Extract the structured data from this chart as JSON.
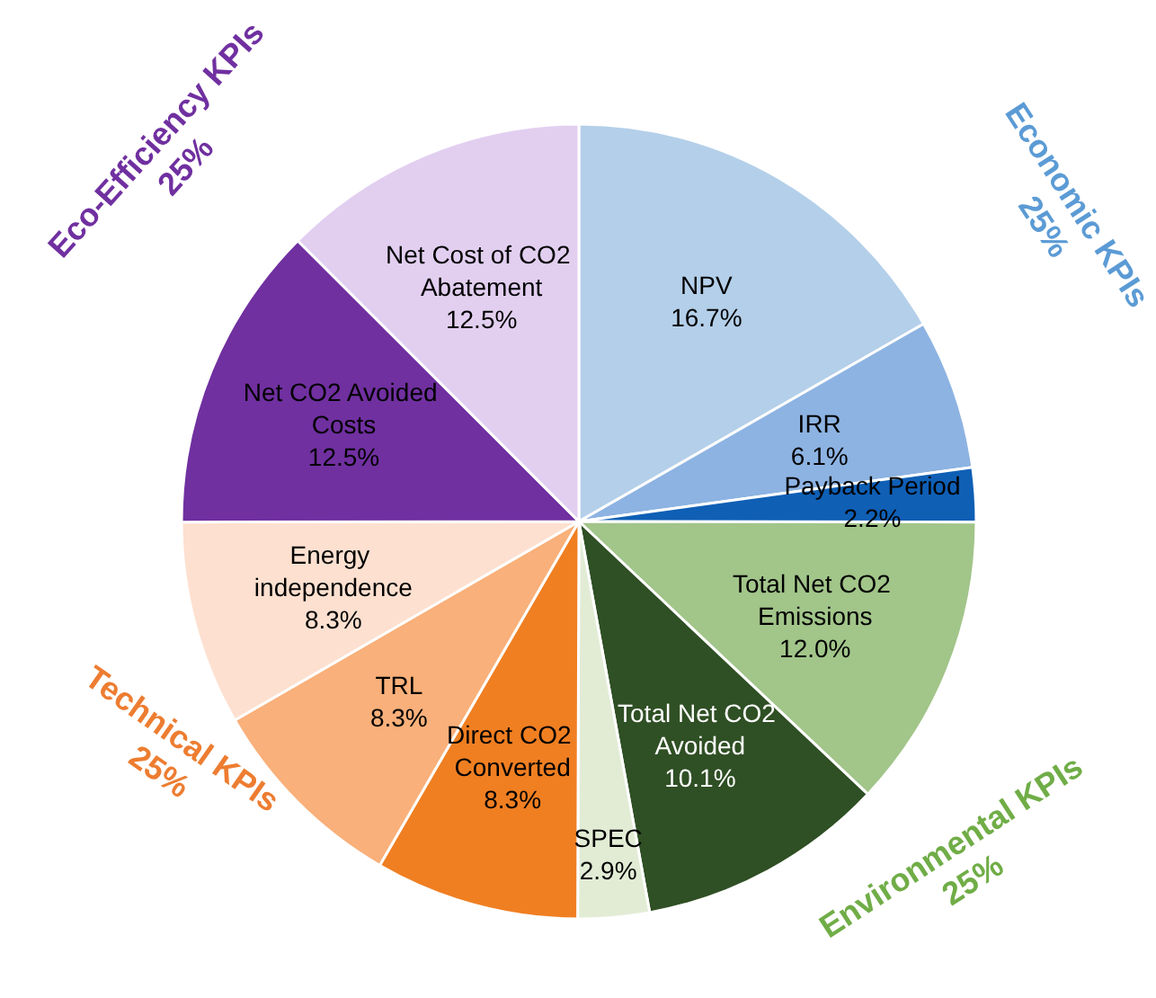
{
  "chart_data": {
    "type": "pie",
    "categories": [
      "NPV",
      "IRR",
      "Payback Period",
      "Total Net CO2 Emissions",
      "Total Net CO2 Avoided",
      "SPEC",
      "Direct CO2 Converted",
      "TRL",
      "Energy independence",
      "Net CO2 Avoided Costs",
      "Net Cost of CO2 Abatement"
    ],
    "values": [
      16.7,
      6.1,
      2.2,
      12.0,
      10.1,
      2.9,
      8.3,
      8.3,
      8.3,
      12.5,
      12.5
    ],
    "value_labels": [
      "16.7%",
      "6.1%",
      "2.2%",
      "12.0%",
      "10.1%",
      "2.9%",
      "8.3%",
      "8.3%",
      "8.3%",
      "12.5%",
      "12.5%"
    ],
    "colors": [
      "#b4cfe9",
      "#8db3e2",
      "#0f5fb5",
      "#a2c58a",
      "#2f4f24",
      "#e2ecd5",
      "#f07f22",
      "#f9b07a",
      "#fde0d0",
      "#7030a0",
      "#e2cff0"
    ],
    "annotations": [
      "Economic KPIs\n25%",
      "Environmental KPIs\n25%",
      "Technical KPIs\n25%",
      "Eco-Efficiency KPIs\n25%"
    ],
    "legend": false
  }
}
